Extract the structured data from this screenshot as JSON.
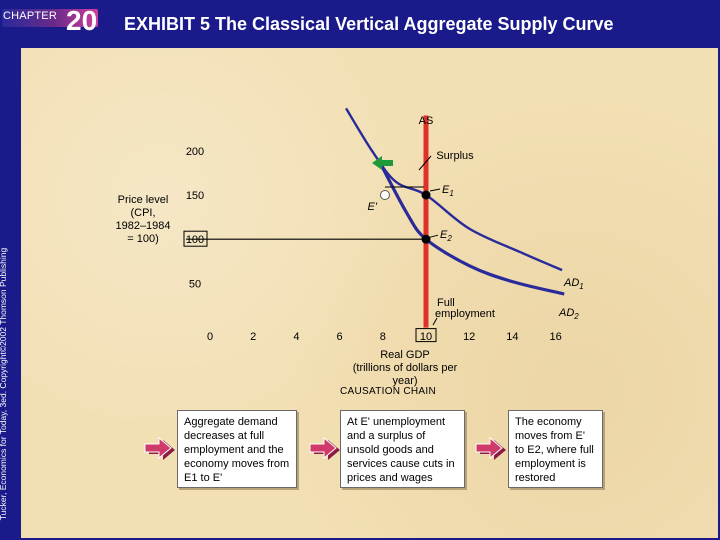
{
  "header": {
    "chapter_label": "CHAPTER",
    "chapter_number": "20",
    "title": "EXHIBIT 5 The Classical Vertical Aggregate Supply Curve",
    "side_credit": "Tucker, Economics for Today, 3ed. Copyright©2002 Thomson Publishing"
  },
  "colors": {
    "background": "#1a1a8a",
    "panel": "#f2dfb3",
    "as_line": "#e0302a",
    "ad_curve": "#2a2a9a",
    "surplus_arrow": "#1e9a3a",
    "chain_arrow": "#d03a6a"
  },
  "chart_data": {
    "type": "line",
    "ylabel": "Price level (CPI, 1982–1984 = 100)",
    "xlabel": "Real GDP",
    "xlabel_sub": "(trillions of dollars per year)",
    "x_ticks": [
      0,
      2,
      4,
      6,
      8,
      10,
      12,
      14,
      16
    ],
    "x_tick_labels": [
      "0",
      "2",
      "4",
      "6",
      "8",
      "10",
      "12",
      "14",
      "16"
    ],
    "highlighted_x_tick": "10",
    "y_ticks": [
      50,
      100,
      150,
      200
    ],
    "y_tick_labels": [
      "50",
      "100",
      "150",
      "200"
    ],
    "highlighted_y_tick": "100",
    "xlim": [
      0,
      16
    ],
    "ylim": [
      0,
      250
    ],
    "series": [
      {
        "name": "AS",
        "x": [
          10,
          10
        ],
        "y": [
          0,
          240
        ]
      },
      {
        "name": "AD1",
        "x": [
          6.3,
          7.5,
          8.6,
          10,
          12,
          14.4,
          16.3
        ],
        "y": [
          248,
          200,
          165,
          150,
          112,
          85,
          65
        ]
      },
      {
        "name": "AD2",
        "x": [
          7.8,
          9.1,
          10,
          12,
          14,
          16.4
        ],
        "y": [
          190,
          130,
          100,
          70,
          52,
          38
        ]
      }
    ],
    "points": [
      {
        "name": "E1",
        "x": 10,
        "y": 150
      },
      {
        "name": "E'",
        "x": 8.1,
        "y": 150
      },
      {
        "name": "E2",
        "x": 10,
        "y": 100
      }
    ],
    "labels": {
      "as": "AS",
      "ad1_main": "AD",
      "ad1_sub": "1",
      "ad2_main": "AD",
      "ad2_sub": "2",
      "e1_main": "E",
      "e1_sub": "1",
      "e2_main": "E",
      "e2_sub": "2",
      "e_prime": "E'",
      "surplus": "Surplus",
      "full_employment_line1": "Full",
      "full_employment_line2": "employment"
    }
  },
  "price_label": [
    "Price level",
    "(CPI,",
    "1982–1984",
    "= 100)"
  ],
  "causation": {
    "title": "CAUSATION CHAIN",
    "boxes": [
      "Aggregate demand decreases at full employment and the economy moves from E1 to E'",
      "At E' unemployment and a surplus of unsold goods and services cause cuts in prices and wages",
      "The economy moves from E' to E2, where full employment is restored"
    ]
  }
}
